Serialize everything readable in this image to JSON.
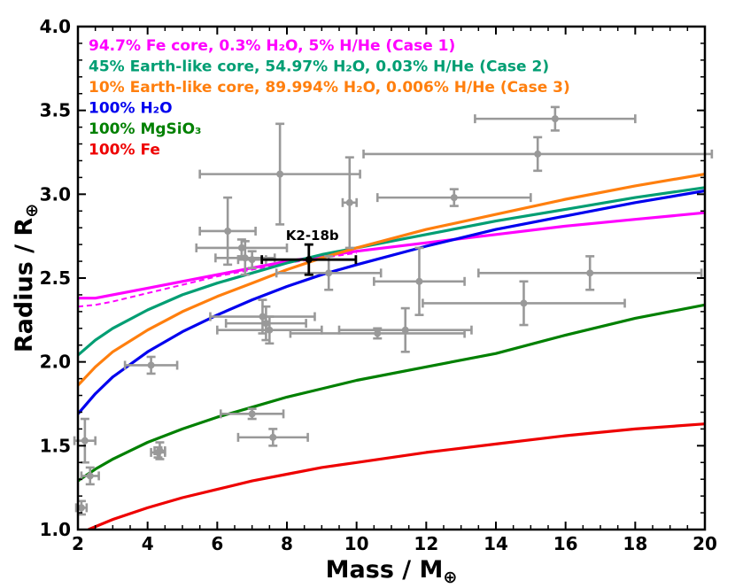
{
  "chart_data": {
    "type": "scatter",
    "xlabel_main": "Mass / M",
    "xlabel_sub": "⊕",
    "ylabel_main": "Radius / R",
    "ylabel_sub": "⊕",
    "xlim": [
      2,
      20
    ],
    "ylim": [
      1.0,
      4.0
    ],
    "xticks": [
      2,
      4,
      6,
      8,
      10,
      12,
      14,
      16,
      18,
      20
    ],
    "yticks": [
      1.0,
      1.5,
      2.0,
      2.5,
      3.0,
      3.5,
      4.0
    ],
    "xtick_labels": [
      "2",
      "4",
      "6",
      "8",
      "10",
      "12",
      "14",
      "16",
      "18",
      "20"
    ],
    "ytick_labels": [
      "1.0",
      "1.5",
      "2.0",
      "2.5",
      "3.0",
      "3.5",
      "4.0"
    ],
    "legend": [
      {
        "label": "94.7% Fe core, 0.3% H₂O, 5% H/He (Case 1)",
        "color": "#ff00ff"
      },
      {
        "label": "45% Earth-like core, 54.97% H₂O, 0.03% H/He (Case 2)",
        "color": "#009e73"
      },
      {
        "label": "10% Earth-like core, 89.994% H₂O, 0.006% H/He (Case 3)",
        "color": "#ff7f0e"
      },
      {
        "label": "100% H₂O",
        "color": "#0000ee"
      },
      {
        "label": "100% MgSiO₃",
        "color": "#008000"
      },
      {
        "label": "100% Fe",
        "color": "#ee0000"
      }
    ],
    "series": [
      {
        "name": "Case 1",
        "color": "#ff00ff",
        "dash": false,
        "x": [
          2,
          2.5,
          3,
          4,
          5,
          6,
          7,
          8,
          9,
          10,
          12,
          14,
          16,
          18,
          20
        ],
        "y": [
          2.38,
          2.38,
          2.4,
          2.44,
          2.48,
          2.52,
          2.56,
          2.6,
          2.63,
          2.66,
          2.71,
          2.76,
          2.81,
          2.85,
          2.89
        ]
      },
      {
        "name": "Case 1 (dashed)",
        "color": "#ff00ff",
        "dash": true,
        "x": [
          2,
          2.5,
          3,
          4,
          5,
          6,
          7,
          8,
          9,
          10
        ],
        "y": [
          2.33,
          2.34,
          2.36,
          2.41,
          2.46,
          2.51,
          2.55,
          2.59,
          2.62,
          2.65
        ]
      },
      {
        "name": "Case 2",
        "color": "#009e73",
        "dash": false,
        "x": [
          2,
          2.5,
          3,
          4,
          5,
          6,
          7,
          8,
          9,
          10,
          12,
          14,
          16,
          18,
          20
        ],
        "y": [
          2.04,
          2.13,
          2.2,
          2.31,
          2.4,
          2.47,
          2.53,
          2.59,
          2.64,
          2.68,
          2.76,
          2.84,
          2.91,
          2.98,
          3.04
        ]
      },
      {
        "name": "Case 3",
        "color": "#ff7f0e",
        "dash": false,
        "x": [
          2,
          2.5,
          3,
          4,
          5,
          6,
          7,
          8,
          9,
          10,
          12,
          14,
          16,
          18,
          20
        ],
        "y": [
          1.86,
          1.97,
          2.06,
          2.19,
          2.3,
          2.39,
          2.47,
          2.55,
          2.62,
          2.68,
          2.79,
          2.88,
          2.97,
          3.05,
          3.12
        ]
      },
      {
        "name": "100% H2O",
        "color": "#0000ee",
        "dash": false,
        "x": [
          2,
          2.5,
          3,
          4,
          5,
          6,
          7,
          8,
          9,
          10,
          12,
          14,
          16,
          18,
          20
        ],
        "y": [
          1.69,
          1.81,
          1.91,
          2.06,
          2.18,
          2.28,
          2.37,
          2.45,
          2.52,
          2.58,
          2.69,
          2.79,
          2.87,
          2.95,
          3.02
        ]
      },
      {
        "name": "100% MgSiO3",
        "color": "#008000",
        "dash": false,
        "x": [
          2,
          2.5,
          3,
          4,
          5,
          6,
          7,
          8,
          9,
          10,
          12,
          14,
          16,
          18,
          20
        ],
        "y": [
          1.29,
          1.36,
          1.42,
          1.52,
          1.6,
          1.67,
          1.73,
          1.79,
          1.84,
          1.89,
          1.97,
          2.05,
          2.16,
          2.26,
          2.34
        ]
      },
      {
        "name": "100% Fe",
        "color": "#ee0000",
        "dash": false,
        "x": [
          2.3,
          3,
          4,
          5,
          6,
          7,
          8,
          9,
          10,
          12,
          14,
          16,
          18,
          20
        ],
        "y": [
          1.0,
          1.06,
          1.13,
          1.19,
          1.24,
          1.29,
          1.33,
          1.37,
          1.4,
          1.46,
          1.51,
          1.56,
          1.6,
          1.63
        ]
      }
    ],
    "points": [
      {
        "x": 2.1,
        "y": 1.13,
        "xerr": 0.15,
        "yerr": 0.04
      },
      {
        "x": 2.2,
        "y": 1.53,
        "xerr": 0.3,
        "yerr": 0.13
      },
      {
        "x": 2.35,
        "y": 1.32,
        "xerr": 0.25,
        "yerr": 0.05
      },
      {
        "x": 4.1,
        "y": 1.98,
        "xerr": 0.75,
        "yerr": 0.05
      },
      {
        "x": 4.35,
        "y": 1.47,
        "xerr": 0.15,
        "yerr": 0.05
      },
      {
        "x": 4.3,
        "y": 1.46,
        "xerr": 0.2,
        "yerr": 0.03
      },
      {
        "x": 6.3,
        "y": 2.78,
        "xerr": 0.8,
        "yerr": 0.2
      },
      {
        "x": 6.7,
        "y": 2.68,
        "xerr": 1.3,
        "yerr": 0.05
      },
      {
        "x": 6.8,
        "y": 2.62,
        "xerr": 0.85,
        "yerr": 0.1
      },
      {
        "x": 7.0,
        "y": 2.61,
        "xerr": 0.4,
        "yerr": 0.05
      },
      {
        "x": 7.0,
        "y": 1.69,
        "xerr": 0.9,
        "yerr": 0.03
      },
      {
        "x": 7.3,
        "y": 2.27,
        "xerr": 1.5,
        "yerr": 0.1
      },
      {
        "x": 7.4,
        "y": 2.23,
        "xerr": 1.15,
        "yerr": 0.1
      },
      {
        "x": 7.5,
        "y": 2.19,
        "xerr": 1.5,
        "yerr": 0.08
      },
      {
        "x": 7.6,
        "y": 1.55,
        "xerr": 1.0,
        "yerr": 0.05
      },
      {
        "x": 7.8,
        "y": 3.12,
        "xerr": 2.3,
        "yerr": 0.3
      },
      {
        "x": 9.2,
        "y": 2.53,
        "xerr": 1.5,
        "yerr": 0.1
      },
      {
        "x": 9.8,
        "y": 2.95,
        "xerr": 0.2,
        "yerr": 0.27
      },
      {
        "x": 10.6,
        "y": 2.17,
        "xerr": 2.5,
        "yerr": 0.03
      },
      {
        "x": 11.4,
        "y": 2.19,
        "xerr": 1.9,
        "yerr": 0.13
      },
      {
        "x": 11.8,
        "y": 2.48,
        "xerr": 1.3,
        "yerr": 0.2
      },
      {
        "x": 12.8,
        "y": 2.98,
        "xerr": 2.2,
        "yerr": 0.05
      },
      {
        "x": 14.8,
        "y": 2.35,
        "xerr": 2.9,
        "yerr": 0.13
      },
      {
        "x": 15.2,
        "y": 3.24,
        "xerr": 5.0,
        "yerr": 0.1
      },
      {
        "x": 15.7,
        "y": 3.45,
        "xerr": 2.3,
        "yerr": 0.07
      },
      {
        "x": 16.7,
        "y": 2.53,
        "xerr": 3.2,
        "yerr": 0.1
      }
    ],
    "highlight": {
      "label": "K2-18b",
      "x": 8.63,
      "y": 2.61,
      "xerr": 1.35,
      "yerr": 0.09
    }
  }
}
